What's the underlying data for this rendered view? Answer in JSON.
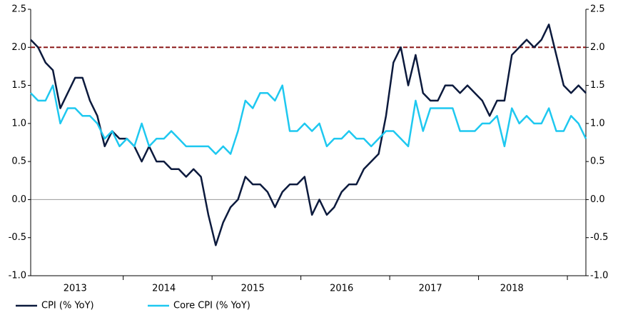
{
  "chart_data": {
    "type": "line",
    "categories": [
      null,
      null,
      null,
      null,
      null,
      null,
      "2013",
      null,
      null,
      null,
      null,
      null,
      null,
      null,
      null,
      null,
      null,
      null,
      "2014",
      null,
      null,
      null,
      null,
      null,
      null,
      null,
      null,
      null,
      null,
      null,
      "2015",
      null,
      null,
      null,
      null,
      null,
      null,
      null,
      null,
      null,
      null,
      null,
      "2016",
      null,
      null,
      null,
      null,
      null,
      null,
      null,
      null,
      null,
      null,
      null,
      "2017",
      null,
      null,
      null,
      null,
      null,
      null,
      null,
      null,
      null,
      null,
      "2018",
      null,
      null,
      null,
      null,
      null,
      null,
      null,
      null,
      null,
      null
    ],
    "series": [
      {
        "name": "CPI (% YoY)",
        "color": "#0c1a3d",
        "values": [
          2.1,
          2.0,
          1.8,
          1.7,
          1.2,
          1.4,
          1.6,
          1.6,
          1.3,
          1.1,
          0.7,
          0.9,
          0.8,
          0.8,
          0.7,
          0.5,
          0.7,
          0.5,
          0.5,
          0.4,
          0.4,
          0.3,
          0.4,
          0.3,
          -0.2,
          -0.6,
          -0.3,
          -0.1,
          0.0,
          0.3,
          0.2,
          0.2,
          0.1,
          -0.1,
          0.1,
          0.2,
          0.2,
          0.3,
          -0.2,
          0.0,
          -0.2,
          -0.1,
          0.1,
          0.2,
          0.2,
          0.4,
          0.5,
          0.6,
          1.1,
          1.8,
          2.0,
          1.5,
          1.9,
          1.4,
          1.3,
          1.3,
          1.5,
          1.5,
          1.4,
          1.5,
          1.4,
          1.3,
          1.1,
          1.3,
          1.3,
          1.9,
          2.0,
          2.1,
          2.0,
          2.1,
          2.3,
          1.9,
          1.5,
          1.4,
          1.5,
          1.4
        ]
      },
      {
        "name": "Core CPI (% YoY)",
        "color": "#1ec8f0",
        "values": [
          1.4,
          1.3,
          1.3,
          1.5,
          1.0,
          1.2,
          1.2,
          1.1,
          1.1,
          1.0,
          0.8,
          0.9,
          0.7,
          0.8,
          0.7,
          1.0,
          0.7,
          0.8,
          0.8,
          0.9,
          0.8,
          0.7,
          0.7,
          0.7,
          0.7,
          0.6,
          0.7,
          0.6,
          0.9,
          1.3,
          1.2,
          1.4,
          1.4,
          1.3,
          1.5,
          0.9,
          0.9,
          1.0,
          0.9,
          1.0,
          0.7,
          0.8,
          0.8,
          0.9,
          0.8,
          0.8,
          0.7,
          0.8,
          0.9,
          0.9,
          0.8,
          0.7,
          1.3,
          0.9,
          1.2,
          1.2,
          1.2,
          1.2,
          0.9,
          0.9,
          0.9,
          1.0,
          1.0,
          1.1,
          0.7,
          1.2,
          1.0,
          1.1,
          1.0,
          1.0,
          1.2,
          0.9,
          0.9,
          1.1,
          1.0,
          0.8
        ]
      }
    ],
    "ylim": [
      -1,
      2.5
    ],
    "yticks": [
      {
        "value": -1,
        "label": "-1.0"
      },
      -0.5,
      {
        "value": 0,
        "label": "0.0"
      },
      0.5,
      {
        "value": 1,
        "label": "1.0"
      },
      1.5,
      {
        "value": 2,
        "label": "2.0"
      },
      2.5
    ],
    "y2lim": [
      -1,
      2.5
    ],
    "y2ticks": [
      {
        "value": -1,
        "label": "-1.0"
      },
      -0.5,
      {
        "value": 0,
        "label": "0.0"
      },
      0.5,
      {
        "value": 1,
        "label": "1.0"
      },
      1.5,
      {
        "value": 2,
        "label": "2.0"
      },
      2.5
    ],
    "reference_line": {
      "value": 2,
      "color": "#8b1a1a"
    },
    "legend": "bottom-left"
  }
}
